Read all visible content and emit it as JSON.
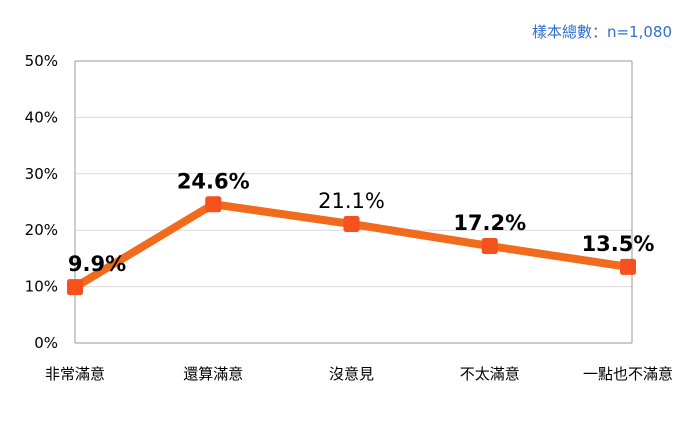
{
  "sample_note": "樣本總數：n=1,080",
  "colors": {
    "line": "#f26b1d",
    "marker": "#f4511e",
    "grid": "#d9d9d9",
    "axis": "#999999",
    "note": "#2f6fce"
  },
  "chart_data": {
    "type": "line",
    "title": "",
    "xlabel": "",
    "ylabel": "",
    "categories": [
      "非常滿意",
      "還算滿意",
      "沒意見",
      "不太滿意",
      "一點也不滿意"
    ],
    "values": [
      9.9,
      24.6,
      21.1,
      17.2,
      13.5
    ],
    "value_labels": [
      "9.9%",
      "24.6%",
      "21.1%",
      "17.2%",
      "13.5%"
    ],
    "value_label_bold": [
      true,
      true,
      false,
      true,
      true
    ],
    "ylim": [
      0,
      50
    ],
    "yticks": [
      0,
      10,
      20,
      30,
      40,
      50
    ],
    "ytick_labels": [
      "0%",
      "10%",
      "20%",
      "30%",
      "40%",
      "50%"
    ],
    "grid": true,
    "legend": "none"
  }
}
